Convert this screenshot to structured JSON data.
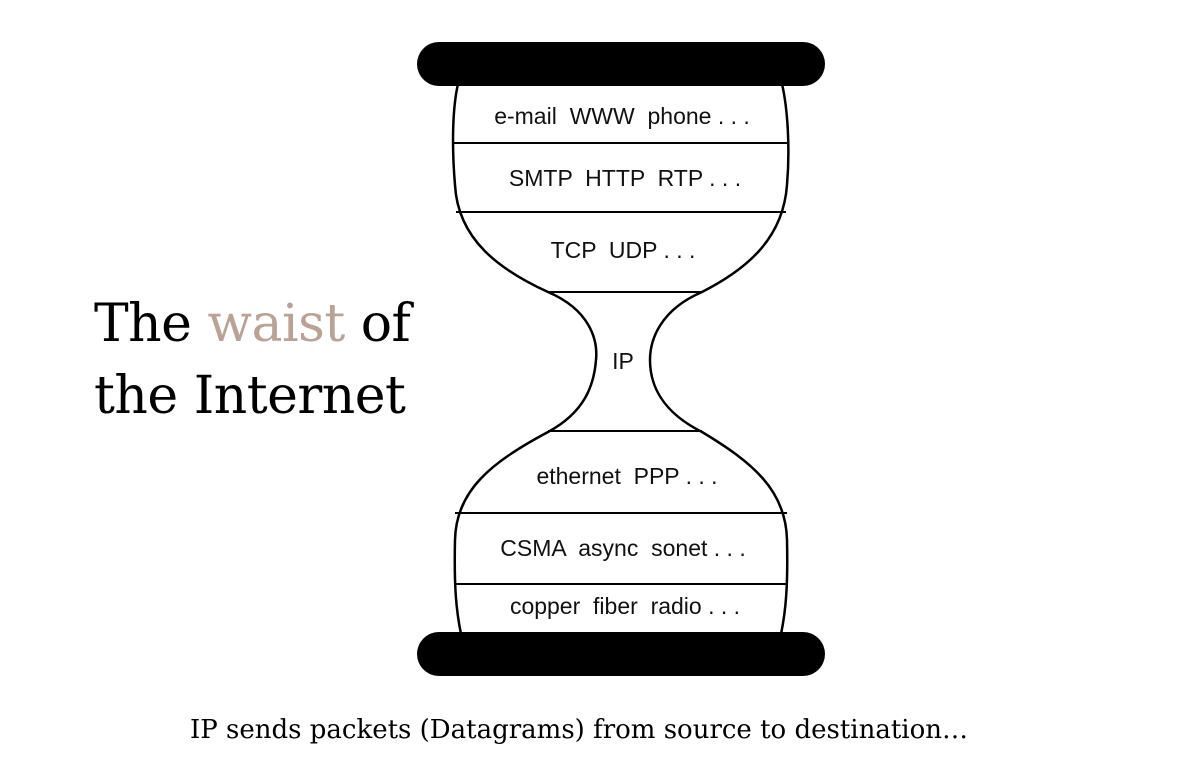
{
  "title": {
    "line1_before": "The ",
    "line1_accent": "waist",
    "line1_after": " of",
    "line2": "the Internet"
  },
  "colors": {
    "accent": "#b9a296",
    "ink": "#000000"
  },
  "layers": [
    {
      "id": "applications",
      "label": "e-mail  WWW  phone . . ."
    },
    {
      "id": "app-protocols",
      "label": "SMTP  HTTP  RTP . . ."
    },
    {
      "id": "transport",
      "label": "TCP  UDP . . ."
    },
    {
      "id": "network",
      "label": "IP"
    },
    {
      "id": "link",
      "label": "ethernet  PPP . . ."
    },
    {
      "id": "media-access",
      "label": "CSMA  async  sonet . . ."
    },
    {
      "id": "physical",
      "label": "copper  fiber  radio . . ."
    }
  ],
  "caption": "IP sends packets (Datagrams) from source to destination…"
}
